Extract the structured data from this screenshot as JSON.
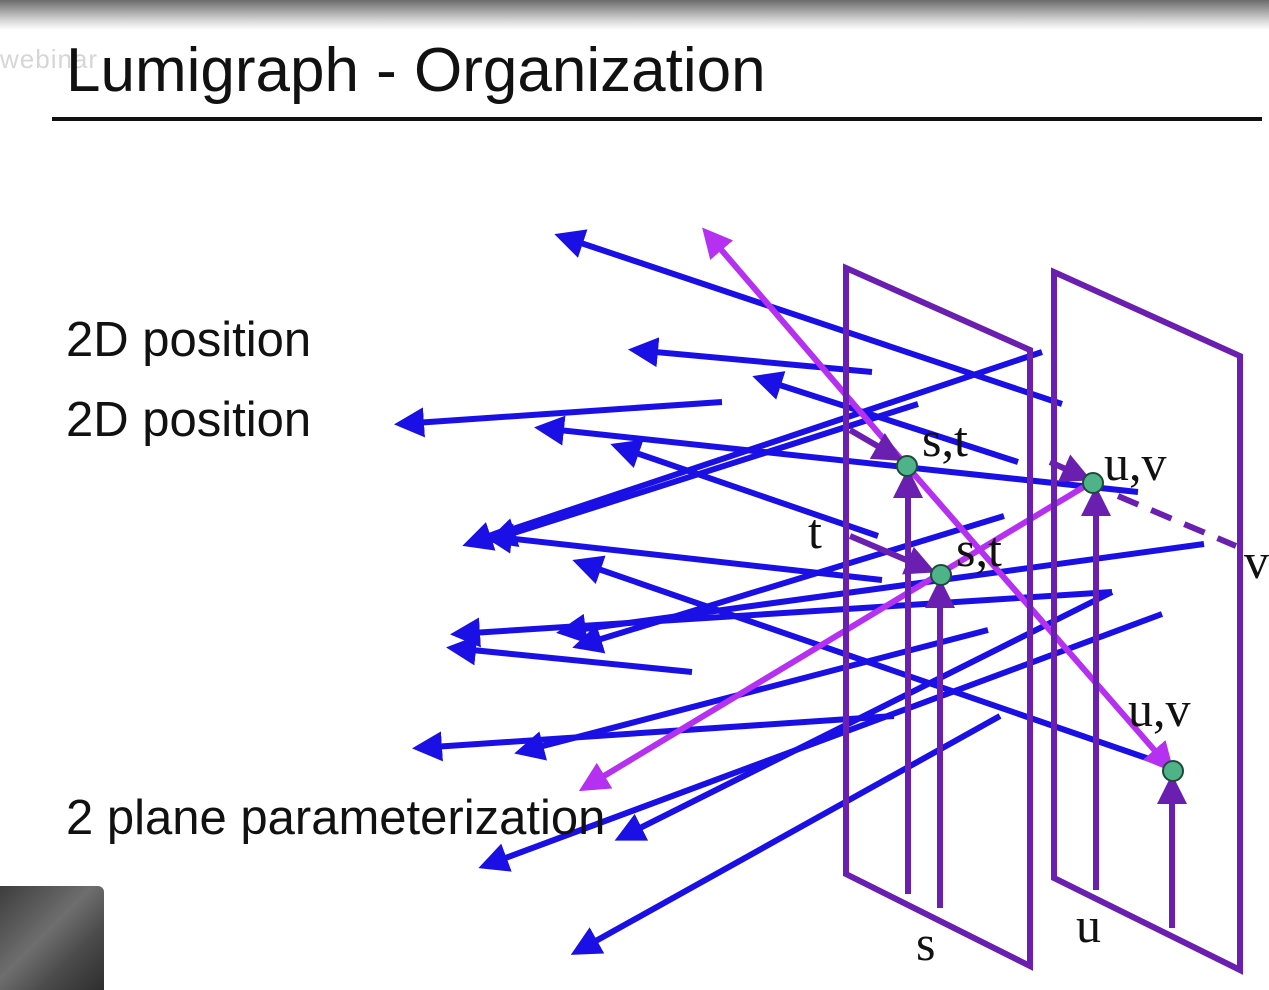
{
  "slide": {
    "title": "Lumigraph - Organization",
    "watermark": "webinar",
    "bullets": [
      "2D position",
      "2D position",
      "2 plane parameterization"
    ]
  },
  "diagram": {
    "labels": {
      "st_1": "s,t",
      "st_2": "s,t",
      "uv_1": "u,v",
      "uv_2": "u,v",
      "t_axis": "t",
      "s_axis": "s",
      "u_axis": "u",
      "v_axis": "v"
    },
    "colors": {
      "ray": "#1a10e6",
      "highlight_ray": "#b530f0",
      "plane": "#6a1fb0",
      "point": "#4fb38a"
    }
  }
}
